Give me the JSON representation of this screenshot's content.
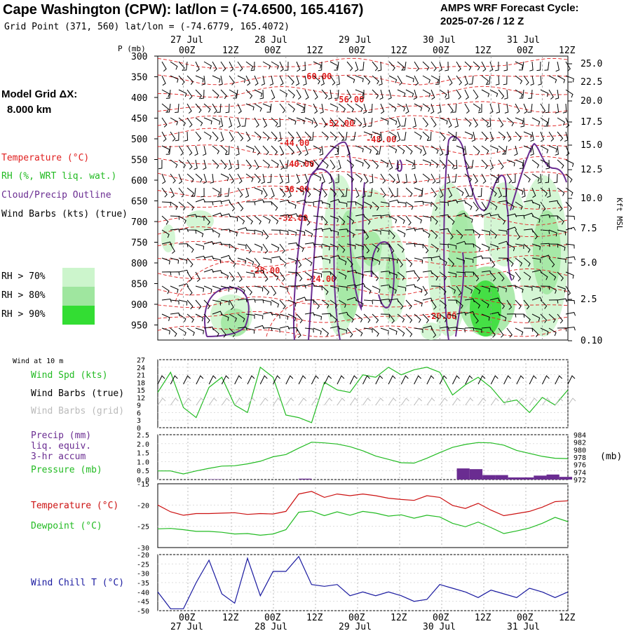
{
  "header": {
    "title": "Cape Washington (CPW):  lat/lon = (-74.6500, 165.4167)",
    "subtitle": "Grid Point (371, 560) lat/lon = (-74.6779, 165.4072)",
    "cycle_label": "AMPS WRF Forecast Cycle:",
    "cycle_time": "2025-07-26 / 12  Z",
    "grid_label": "Model Grid ΔX:",
    "grid_value": "8.000 km"
  },
  "time_axis": {
    "ticks": [
      "00Z",
      "12Z",
      "00Z",
      "12Z",
      "00Z",
      "12Z",
      "00Z",
      "12Z",
      "00Z",
      "12Z"
    ],
    "dates": [
      "27 Jul",
      "28 Jul",
      "29 Jul",
      "30 Jul",
      "31 Jul"
    ]
  },
  "upper_panel": {
    "p_axis_title": "P (mb)",
    "pressure_ticks": [
      "300",
      "350",
      "400",
      "450",
      "500",
      "550",
      "600",
      "650",
      "700",
      "750",
      "800",
      "850",
      "900",
      "950"
    ],
    "height_ticks": [
      "25.0",
      "22.5",
      "20.0",
      "17.5",
      "15.0",
      "12.5",
      "10.0",
      "7.5",
      "5.0",
      "2.5",
      "0.10"
    ],
    "height_axis_title": "Kft MSL",
    "legend": {
      "temperature": "Temperature (°C)",
      "rh": "RH (%, WRT liq. wat.)",
      "cloud": "Cloud/Precip Outline",
      "wind": "Wind Barbs (kts) (true)"
    },
    "rh_legend": [
      "RH > 70%",
      "RH > 80%",
      "RH > 90%"
    ],
    "colors": {
      "temperature": "#e02020",
      "cloud": "#6a2c91",
      "rh70": "#ccf5cc",
      "rh80": "#9fe69f",
      "rh90": "#33dd33"
    },
    "temp_labels": [
      "-60.00",
      "-56.00",
      "-52.00",
      "-48.00",
      "-44.00",
      "-40.00",
      "-36.00",
      "-32.00",
      "-28.00",
      "-24.00",
      "-20.00"
    ]
  },
  "wind_panel": {
    "wind_at": "Wind at 10 m",
    "label_spd": "Wind Spd (kts)",
    "label_barbs_true": "Wind Barbs (true)",
    "label_barbs_grid": "Wind Barbs (grid)",
    "y_ticks": [
      "27",
      "24",
      "21",
      "18",
      "15",
      "12",
      "9",
      "6",
      "3",
      "0"
    ],
    "colors": {
      "speed": "#22bb22",
      "barbs_true": "#000000",
      "barbs_grid": "#bbbbbb"
    }
  },
  "precip_panel": {
    "label_precip": "Precip (mm)",
    "label_liq": "liq. equiv.",
    "label_accum": "3-hr accum",
    "label_pressure": "Pressure (mb)",
    "left_ticks": [
      "2.5",
      "2.0",
      "1.5",
      "1.0",
      "0.5",
      "0.0"
    ],
    "right_ticks": [
      "984",
      "982",
      "980",
      "978",
      "976",
      "974",
      "972"
    ],
    "right_unit": "(mb)",
    "colors": {
      "precip": "#6a2c91",
      "pressure": "#22bb22"
    }
  },
  "temp_panel": {
    "label_temp": "Temperature (°C)",
    "label_dew": "Dewpoint (°C)",
    "y_ticks": [
      "-15",
      "-20",
      "-25",
      "-30"
    ],
    "colors": {
      "temperature": "#cc1111",
      "dewpoint": "#22bb22"
    }
  },
  "chill_panel": {
    "label": "Wind Chill T (°C)",
    "y_ticks": [
      "-20",
      "-25",
      "-30",
      "-35",
      "-40",
      "-45",
      "-50"
    ],
    "color": "#1a1aa0"
  },
  "chart_data": [
    {
      "type": "line",
      "title": "Wind at 10 m",
      "ylabel": "Wind Spd (kts)",
      "ylim": [
        0,
        27
      ],
      "x_hours": [
        0,
        3,
        6,
        9,
        12,
        15,
        18,
        21,
        24,
        27,
        30,
        33,
        36,
        39,
        42,
        45,
        48,
        51,
        54,
        57,
        60,
        63,
        66,
        69,
        72,
        75,
        78,
        81,
        84,
        87,
        90,
        93,
        96
      ],
      "values": [
        14,
        22,
        8,
        4,
        16,
        20,
        9,
        6,
        24,
        20,
        5,
        4,
        2,
        18,
        15,
        14,
        21,
        20,
        24,
        21,
        23,
        24,
        22,
        13,
        17,
        20,
        16,
        10,
        11,
        6,
        12,
        9,
        15
      ]
    },
    {
      "type": "bar",
      "title": "Precip (mm) liq. equiv. 3-hr accum",
      "ylabel": "Precip (mm)",
      "ylim": [
        0,
        2.5
      ],
      "x_hours": [
        12,
        33,
        70,
        73,
        76,
        79,
        82,
        85,
        88,
        91,
        94
      ],
      "values": [
        0.02,
        0.05,
        0.62,
        0.58,
        0.25,
        0.25,
        0.12,
        0.12,
        0.22,
        0.28,
        0.15
      ]
    },
    {
      "type": "line",
      "title": "Pressure (mb)",
      "ylabel": "Pressure (mb)",
      "ylim": [
        972,
        984
      ],
      "x_hours": [
        0,
        3,
        6,
        9,
        12,
        15,
        18,
        21,
        24,
        27,
        30,
        33,
        36,
        39,
        42,
        45,
        48,
        51,
        54,
        57,
        60,
        63,
        66,
        69,
        72,
        75,
        78,
        81,
        84,
        87,
        90,
        93,
        96
      ],
      "values": [
        974.3,
        974.3,
        973.5,
        974.3,
        975.0,
        975.6,
        975.7,
        976.2,
        976.9,
        978.1,
        978.7,
        980.4,
        982.0,
        981.8,
        981.5,
        980.8,
        979.7,
        978.3,
        977.4,
        976.5,
        976.4,
        977.7,
        979.2,
        980.6,
        981.4,
        981.9,
        981.8,
        981.2,
        979.8,
        979.0,
        978.2,
        977.7,
        977.6
      ]
    },
    {
      "type": "line",
      "title": "Temperature / Dewpoint",
      "ylabel": "°C",
      "ylim": [
        -30,
        -15
      ],
      "x_hours": [
        0,
        3,
        6,
        9,
        12,
        15,
        18,
        21,
        24,
        27,
        30,
        33,
        36,
        39,
        42,
        45,
        48,
        51,
        54,
        57,
        60,
        63,
        66,
        69,
        72,
        75,
        78,
        81,
        84,
        87,
        90,
        93,
        96
      ],
      "series": [
        {
          "name": "Temperature (°C)",
          "values": [
            -20.0,
            -21.6,
            -22.4,
            -22.0,
            -22.0,
            -21.9,
            -21.8,
            -22.2,
            -22.0,
            -22.1,
            -21.5,
            -17.4,
            -16.8,
            -18.2,
            -17.4,
            -17.8,
            -17.4,
            -17.8,
            -18.4,
            -18.7,
            -18.9,
            -17.8,
            -18.2,
            -20.1,
            -20.8,
            -19.6,
            -21.2,
            -22.5,
            -22.0,
            -21.5,
            -20.5,
            -19.2,
            -19.0
          ]
        },
        {
          "name": "Dewpoint (°C)",
          "values": [
            -25.6,
            -25.5,
            -25.8,
            -26.2,
            -26.2,
            -26.4,
            -26.8,
            -26.7,
            -27.1,
            -26.8,
            -25.8,
            -21.7,
            -21.4,
            -22.5,
            -21.6,
            -22.4,
            -21.5,
            -21.9,
            -22.6,
            -22.3,
            -23.1,
            -22.4,
            -22.8,
            -24.3,
            -25.1,
            -24.0,
            -25.3,
            -26.7,
            -26.1,
            -25.4,
            -24.3,
            -22.9,
            -23.9
          ]
        }
      ]
    },
    {
      "type": "line",
      "title": "Wind Chill T",
      "ylabel": "Wind Chill T (°C)",
      "ylim": [
        -50,
        -20
      ],
      "x_hours": [
        0,
        3,
        6,
        9,
        12,
        15,
        18,
        21,
        24,
        27,
        30,
        33,
        36,
        39,
        42,
        45,
        48,
        51,
        54,
        57,
        60,
        63,
        66,
        69,
        72,
        75,
        78,
        81,
        84,
        87,
        90,
        93,
        96
      ],
      "values": [
        -40,
        -49,
        -49,
        -35,
        -23,
        -41,
        -46,
        -22,
        -42,
        -29,
        -29,
        -21,
        -36,
        -37,
        -36,
        -42,
        -40,
        -42,
        -40,
        -42,
        -45,
        -44,
        -36,
        -38,
        -40,
        -43,
        -39,
        -41,
        -43,
        -38,
        -40,
        -43,
        -40
      ]
    }
  ]
}
